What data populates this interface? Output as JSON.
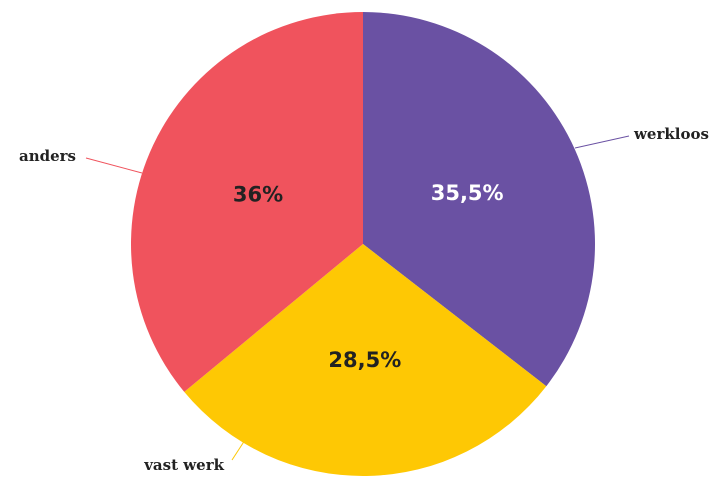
{
  "chart_data": {
    "type": "pie",
    "slices": [
      {
        "label": "werkloos",
        "value": 35.5,
        "display": "35,5%",
        "color": "#6a51a3",
        "value_label_color": "#ffffff"
      },
      {
        "label": "vast werk",
        "value": 28.5,
        "display": "28,5%",
        "color": "#fec804",
        "value_label_color": "#222222"
      },
      {
        "label": "anders",
        "value": 36,
        "display": "36%",
        "color": "#f0535d",
        "value_label_color": "#222222"
      }
    ],
    "start_angle_deg": 0,
    "direction": "clockwise",
    "legend": "none"
  }
}
